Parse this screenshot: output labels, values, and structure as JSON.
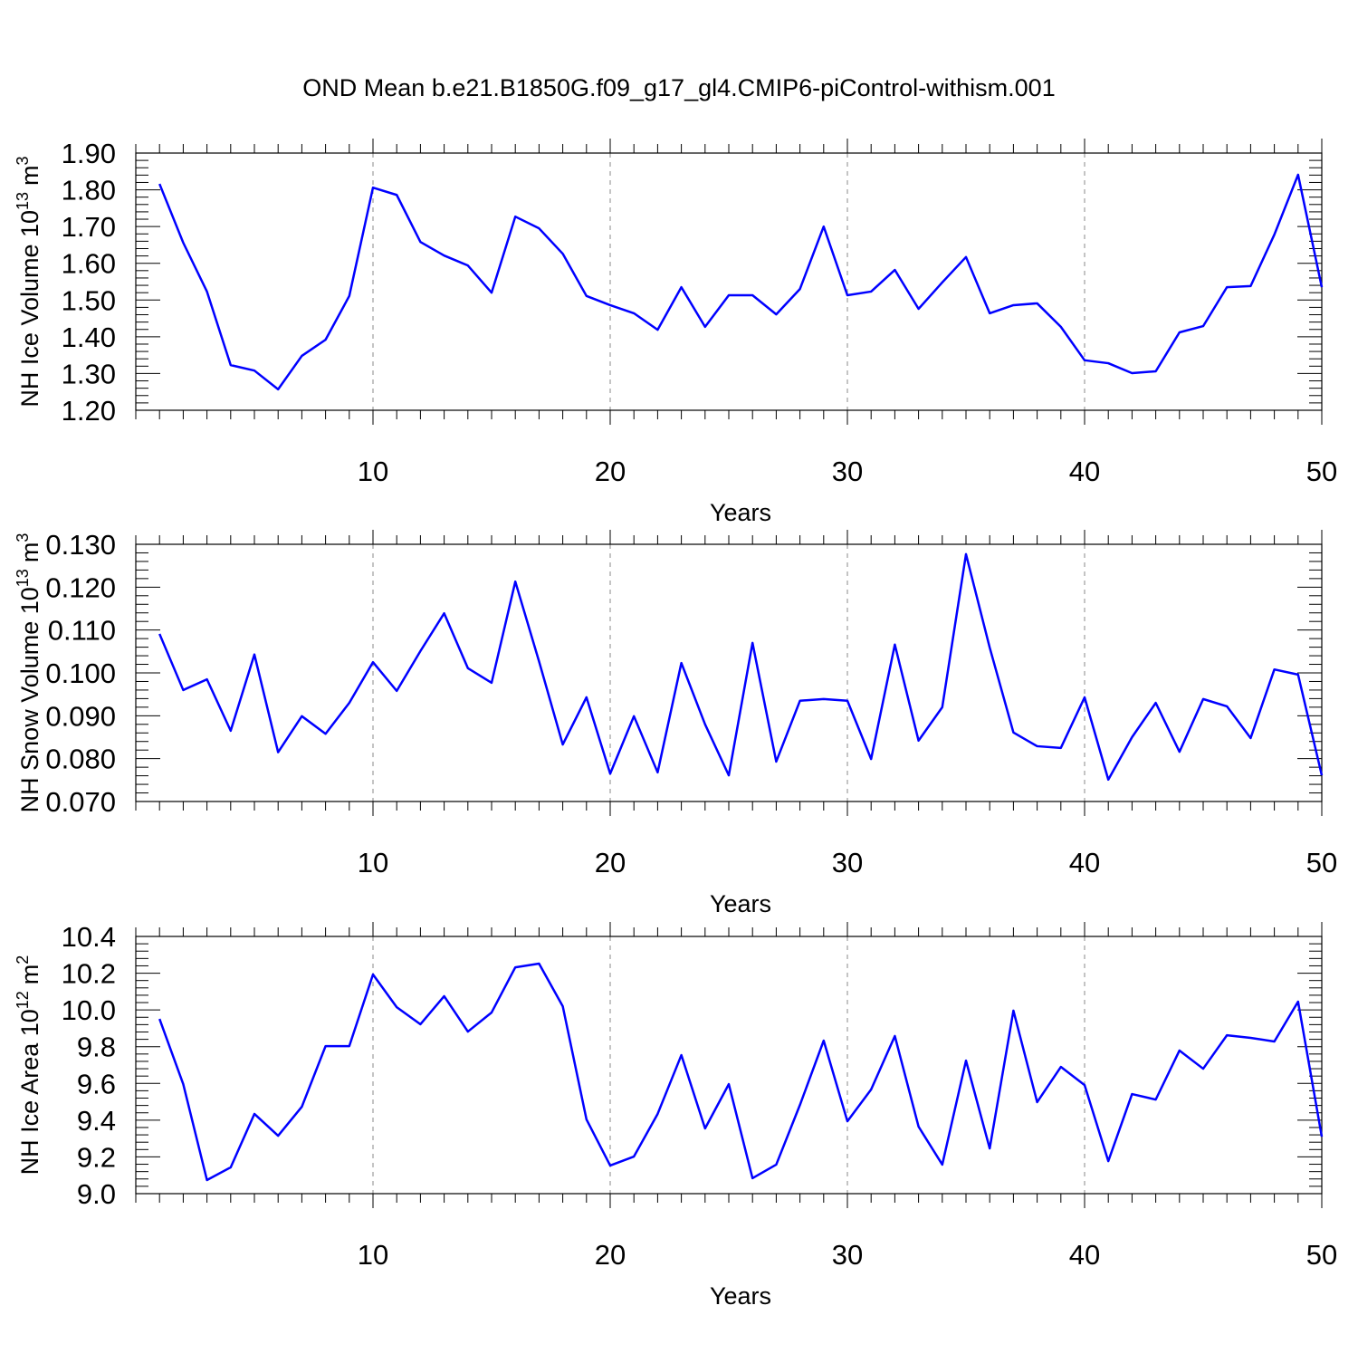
{
  "chart_data": [
    {
      "type": "line",
      "title": "OND Mean b.e21.B1850G.f09_g17_gl4.CMIP6-piControl-withism.001",
      "ylabel": "NH Ice Volume 10",
      "ylabel_exponent": "13",
      "ylabel_unit": "m",
      "ylabel_unit_exponent": "3",
      "xlabel": "Years",
      "x": [
        1,
        2,
        3,
        4,
        5,
        6,
        7,
        8,
        9,
        10,
        11,
        12,
        13,
        14,
        15,
        16,
        17,
        18,
        19,
        20,
        21,
        22,
        23,
        24,
        25,
        26,
        27,
        28,
        29,
        30,
        31,
        32,
        33,
        34,
        35,
        36,
        37,
        38,
        39,
        40,
        41,
        42,
        43,
        44,
        45,
        46,
        47,
        48,
        49,
        50
      ],
      "series": [
        {
          "color": "#0000ff",
          "values": [
            1.816,
            1.656,
            1.523,
            1.323,
            1.308,
            1.257,
            1.348,
            1.392,
            1.511,
            1.806,
            1.786,
            1.658,
            1.621,
            1.594,
            1.52,
            1.727,
            1.695,
            1.626,
            1.511,
            1.486,
            1.464,
            1.419,
            1.535,
            1.427,
            1.513,
            1.513,
            1.461,
            1.53,
            1.7,
            1.513,
            1.523,
            1.582,
            1.476,
            1.548,
            1.617,
            1.464,
            1.486,
            1.491,
            1.427,
            1.336,
            1.328,
            1.301,
            1.306,
            1.412,
            1.429,
            1.535,
            1.538,
            1.678,
            1.841,
            1.535
          ]
        }
      ],
      "xlim": [
        0,
        50
      ],
      "xticks": [
        10,
        20,
        30,
        40,
        50
      ],
      "xgrid": true,
      "ylim": [
        1.2,
        1.9
      ],
      "yticks": [
        {
          "value": 1.2,
          "label": "1.20"
        },
        {
          "value": 1.3,
          "label": "1.30"
        },
        {
          "value": 1.4,
          "label": "1.40"
        },
        {
          "value": 1.5,
          "label": "1.50"
        },
        {
          "value": 1.6,
          "label": "1.60"
        },
        {
          "value": 1.7,
          "label": "1.70"
        },
        {
          "value": 1.8,
          "label": "1.80"
        },
        {
          "value": 1.9,
          "label": "1.90"
        }
      ]
    },
    {
      "type": "line",
      "ylabel": "NH Snow Volume 10",
      "ylabel_exponent": "13",
      "ylabel_unit": "m",
      "ylabel_unit_exponent": "3",
      "xlabel": "Years",
      "x": [
        1,
        2,
        3,
        4,
        5,
        6,
        7,
        8,
        9,
        10,
        11,
        12,
        13,
        14,
        15,
        16,
        17,
        18,
        19,
        20,
        21,
        22,
        23,
        24,
        25,
        26,
        27,
        28,
        29,
        30,
        31,
        32,
        33,
        34,
        35,
        36,
        37,
        38,
        39,
        40,
        41,
        42,
        43,
        44,
        45,
        46,
        47,
        48,
        49,
        50
      ],
      "series": [
        {
          "color": "#0000ff",
          "values": [
            0.1091,
            0.096,
            0.0985,
            0.0865,
            0.1043,
            0.0815,
            0.0899,
            0.0858,
            0.093,
            0.1025,
            0.0958,
            0.1051,
            0.1139,
            0.1011,
            0.0977,
            0.1213,
            0.1027,
            0.0833,
            0.0943,
            0.0765,
            0.0899,
            0.0768,
            0.1023,
            0.088,
            0.0761,
            0.107,
            0.0793,
            0.0935,
            0.0939,
            0.0935,
            0.0799,
            0.1066,
            0.0842,
            0.092,
            0.1277,
            0.1059,
            0.0861,
            0.0829,
            0.0825,
            0.0943,
            0.0751,
            0.085,
            0.093,
            0.0816,
            0.0939,
            0.0922,
            0.0848,
            0.1008,
            0.0996,
            0.0761
          ]
        }
      ],
      "xlim": [
        0,
        50
      ],
      "xticks": [
        10,
        20,
        30,
        40,
        50
      ],
      "xgrid": true,
      "ylim": [
        0.07,
        0.13
      ],
      "yticks": [
        {
          "value": 0.07,
          "label": "0.070"
        },
        {
          "value": 0.08,
          "label": "0.080"
        },
        {
          "value": 0.09,
          "label": "0.090"
        },
        {
          "value": 0.1,
          "label": "0.100"
        },
        {
          "value": 0.11,
          "label": "0.110"
        },
        {
          "value": 0.12,
          "label": "0.120"
        },
        {
          "value": 0.13,
          "label": "0.130"
        }
      ]
    },
    {
      "type": "line",
      "ylabel": "NH Ice Area 10",
      "ylabel_exponent": "12",
      "ylabel_unit": "m",
      "ylabel_unit_exponent": "2",
      "xlabel": "Years",
      "x": [
        1,
        2,
        3,
        4,
        5,
        6,
        7,
        8,
        9,
        10,
        11,
        12,
        13,
        14,
        15,
        16,
        17,
        18,
        19,
        20,
        21,
        22,
        23,
        24,
        25,
        26,
        27,
        28,
        29,
        30,
        31,
        32,
        33,
        34,
        35,
        36,
        37,
        38,
        39,
        40,
        41,
        42,
        43,
        44,
        45,
        46,
        47,
        48,
        49,
        50
      ],
      "series": [
        {
          "color": "#0000ff",
          "values": [
            9.951,
            9.596,
            9.074,
            9.143,
            9.434,
            9.315,
            9.473,
            9.803,
            9.803,
            10.193,
            10.015,
            9.922,
            10.075,
            9.882,
            9.986,
            10.232,
            10.252,
            10.02,
            9.404,
            9.153,
            9.202,
            9.434,
            9.754,
            9.355,
            9.596,
            9.084,
            9.158,
            9.483,
            9.833,
            9.394,
            9.567,
            9.858,
            9.365,
            9.158,
            9.724,
            9.246,
            9.996,
            9.498,
            9.69,
            9.591,
            9.177,
            9.542,
            9.512,
            9.779,
            9.68,
            9.862,
            9.848,
            9.828,
            10.045,
            9.31
          ]
        }
      ],
      "xlim": [
        0,
        50
      ],
      "xticks": [
        10,
        20,
        30,
        40,
        50
      ],
      "xgrid": true,
      "ylim": [
        9.0,
        10.4
      ],
      "yticks": [
        {
          "value": 9.0,
          "label": "9.0"
        },
        9.2,
        9.4,
        9.6,
        9.8,
        {
          "value": 10.0,
          "label": "10.0"
        },
        10.2,
        10.4
      ]
    }
  ]
}
